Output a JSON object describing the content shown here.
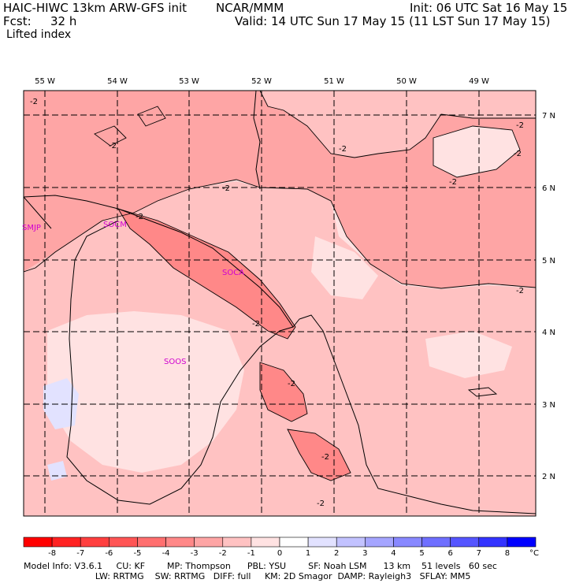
{
  "header": {
    "model_title": "HAIC-HIWC 13km ARW-GFS init",
    "org": "NCAR/MMM",
    "init": "Init: 06 UTC Sat 16 May 15",
    "fcst_label": "Fcst:",
    "fcst_value": "32 h",
    "valid": "Valid: 14 UTC Sun 17 May 15 (11 LST Sun 17 May 15)",
    "field": "Lifted index"
  },
  "map": {
    "lon_labels": [
      "55 W",
      "54 W",
      "53 W",
      "52 W",
      "51 W",
      "50 W",
      "49 W"
    ],
    "lat_labels": [
      "7 N",
      "6 N",
      "5 N",
      "4 N",
      "3 N",
      "2 N"
    ],
    "stations": [
      "SMJP",
      "SOCM",
      "SOCA",
      "SOOS"
    ],
    "contour_label": "-2"
  },
  "colorbar": {
    "ticks": [
      "-8",
      "-7",
      "-6",
      "-5",
      "-4",
      "-3",
      "-2",
      "-1",
      "0",
      "1",
      "2",
      "3",
      "4",
      "5",
      "6",
      "7",
      "8"
    ],
    "unit": "°C",
    "colors": [
      "#ff0000",
      "#ff2222",
      "#ff3f3f",
      "#ff5555",
      "#ff6f6f",
      "#ff8888",
      "#fea5a5",
      "#ffc2c2",
      "#ffe2e2",
      "#ffffff",
      "#e2e2ff",
      "#c2c2ff",
      "#a5a5ff",
      "#8888ff",
      "#6f6fff",
      "#5555ff",
      "#3333ff",
      "#0000ff"
    ]
  },
  "footer": {
    "line1": "Model Info: V3.6.1     CU: KF        MP: Thompson      PBL: YSU        SF: Noah LSM      13 km    51 levels   60 sec",
    "line2": "                          LW: RRTMG    SW: RRTMG   DIFF: full     KM: 2D Smagor  DAMP: Rayleigh3   SFLAY: MM5"
  }
}
